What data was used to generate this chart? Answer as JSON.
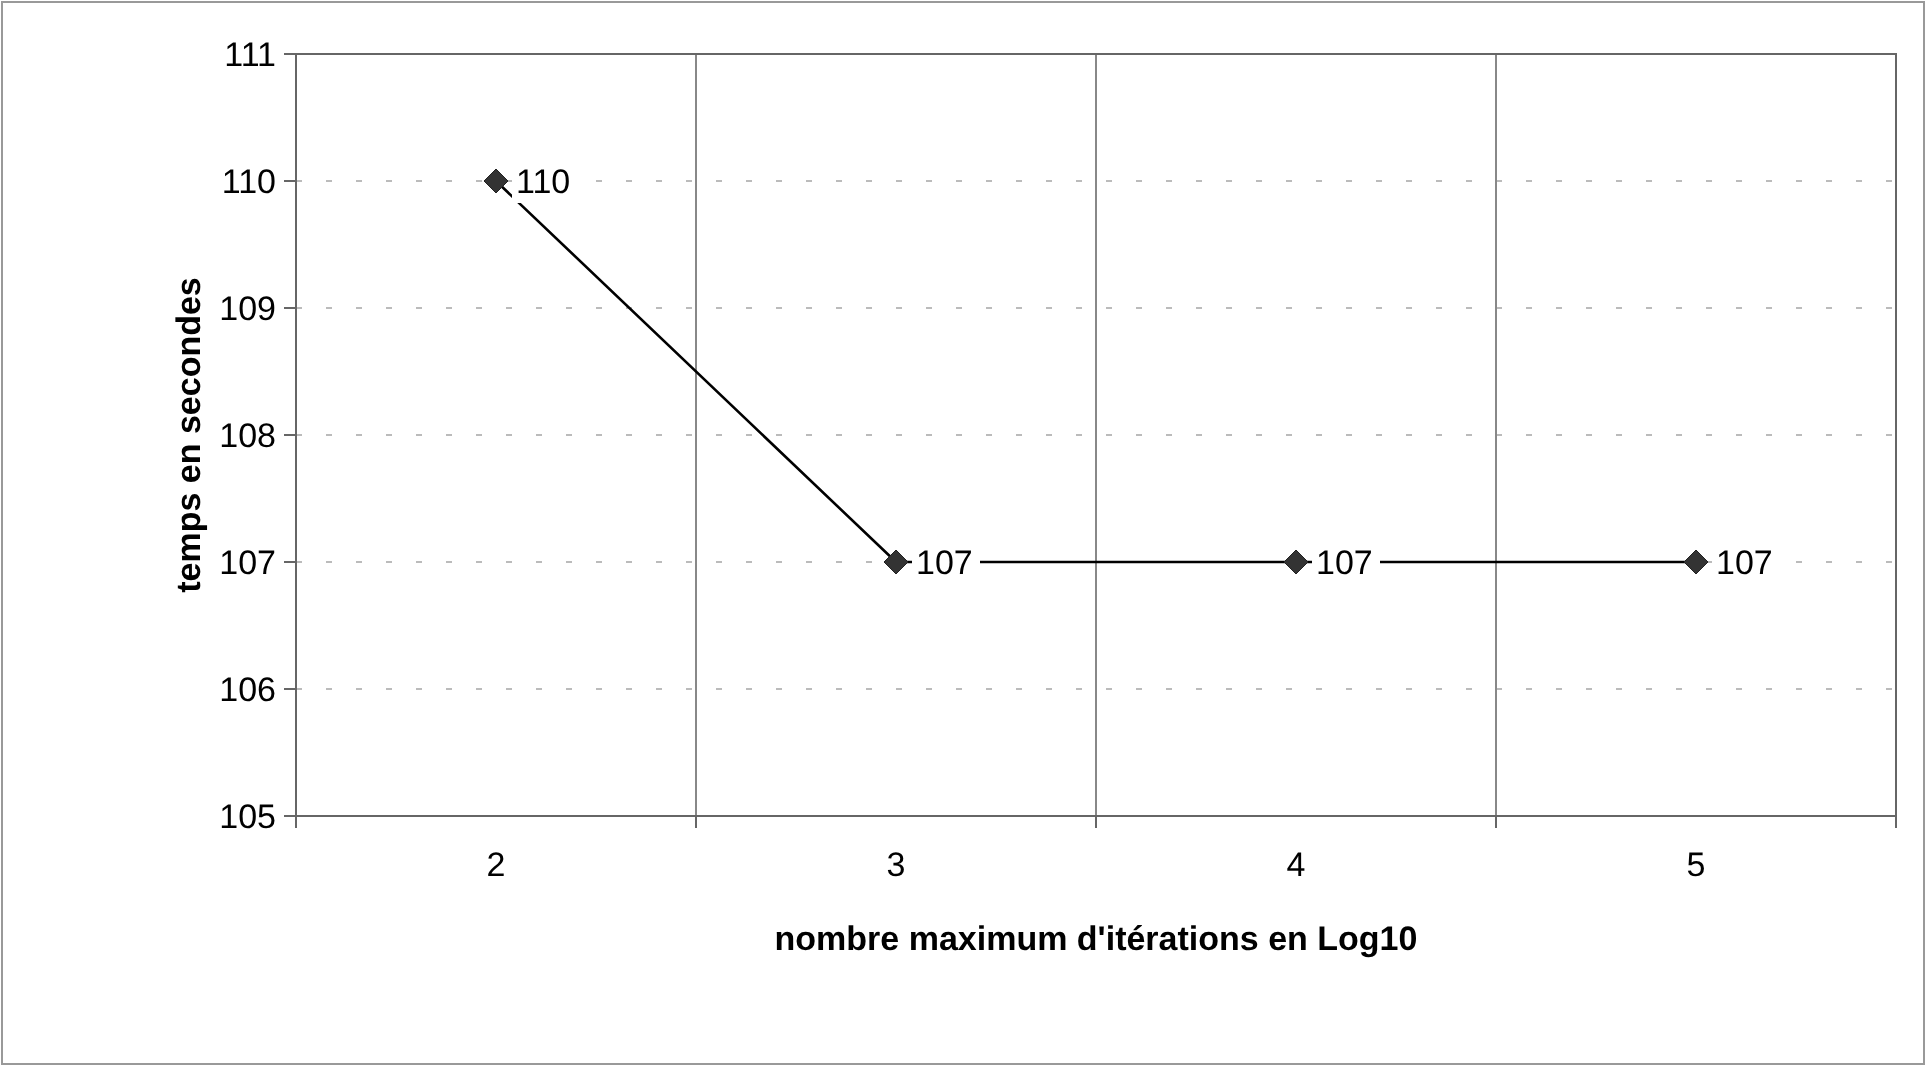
{
  "chart_data": {
    "type": "line",
    "xlabel": "nombre maximum d'itérations en Log10",
    "ylabel": "temps en secondes",
    "categories": [
      "2",
      "3",
      "4",
      "5"
    ],
    "series": [
      {
        "color": "#333333",
        "values": [
          110,
          107,
          107,
          107
        ]
      }
    ],
    "ylim": [
      105,
      111
    ],
    "yticks": [
      105,
      106,
      107,
      108,
      109,
      110,
      111
    ],
    "grid": true,
    "marker": "diamond",
    "line_style": "solid",
    "data_labels": true
  }
}
